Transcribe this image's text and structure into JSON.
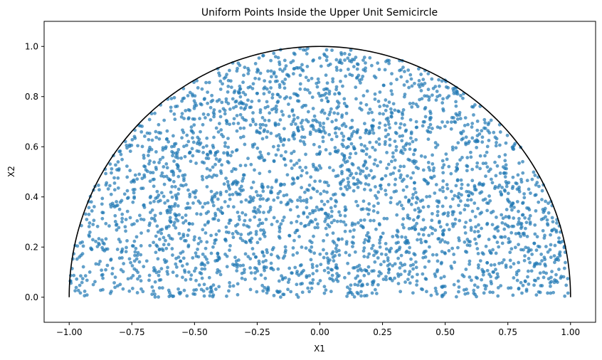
{
  "chart_data": {
    "type": "scatter",
    "title": "Uniform Points Inside the Upper Unit Semicircle",
    "xlabel": "X1",
    "ylabel": "X2",
    "xlim": [
      -1.1,
      1.1
    ],
    "ylim": [
      -0.1,
      1.1
    ],
    "x_ticks": [
      -1.0,
      -0.75,
      -0.5,
      -0.25,
      0.0,
      0.25,
      0.5,
      0.75,
      1.0
    ],
    "x_tick_labels": [
      "−1.00",
      "−0.75",
      "−0.50",
      "−0.25",
      "0.00",
      "0.25",
      "0.50",
      "0.75",
      "1.00"
    ],
    "y_ticks": [
      0.0,
      0.2,
      0.4,
      0.6,
      0.8,
      1.0
    ],
    "y_tick_labels": [
      "0.0",
      "0.2",
      "0.4",
      "0.6",
      "0.8",
      "1.0"
    ],
    "grid": false,
    "legend": "none",
    "boundary": {
      "shape": "upper unit semicircle",
      "radius": 1.0,
      "color": "#000000"
    },
    "points": {
      "count_approx": 3000,
      "distribution": "uniform in upper unit semicircle",
      "color": "#1f77b4",
      "alpha": 0.7
    },
    "series": [
      {
        "values_x": [
          -0.62,
          -0.05,
          0.38,
          0.91,
          -0.88,
          0.12,
          0.55,
          -0.33,
          0.74,
          -0.47
        ],
        "values_y": [
          0.45,
          0.92,
          0.27,
          0.18,
          0.21,
          0.63,
          0.71,
          0.12,
          0.48,
          0.83
        ]
      }
    ]
  }
}
